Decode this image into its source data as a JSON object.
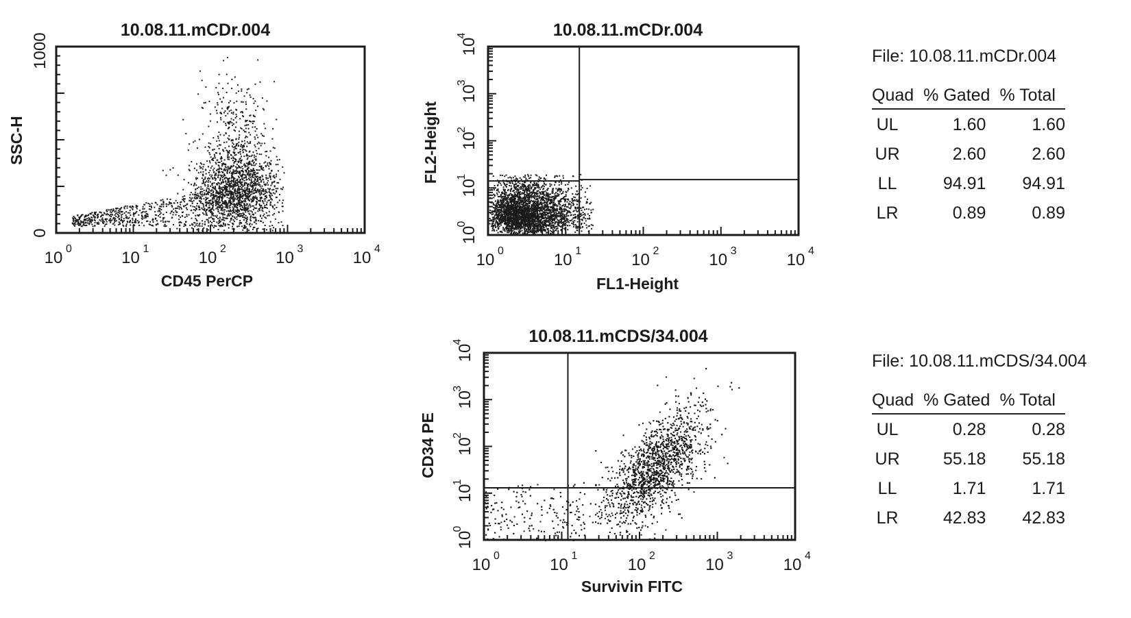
{
  "chart_data": [
    {
      "type": "scatter",
      "title": "10.08.11.mCDr.004",
      "xlabel": "CD45 PerCP",
      "ylabel": "SSC-H",
      "x_scale": "log",
      "y_scale": "linear",
      "xlim": [
        1,
        10000
      ],
      "ylim": [
        0,
        1023
      ],
      "x_ticks": [
        "10^0",
        "10^1",
        "10^2",
        "10^3",
        "10^4"
      ],
      "y_ticks": [
        "0",
        "1000"
      ],
      "grid": false,
      "quadrant_lines": null,
      "populations": [
        {
          "name": "",
          "center_x": 250,
          "center_y": 200,
          "spread": "broad granulocyte/monocyte cloud"
        },
        {
          "name": "",
          "center_x": 10,
          "center_y": 80,
          "spread": "low SSC tail"
        }
      ]
    },
    {
      "type": "scatter",
      "title": "10.08.11.mCDr.004",
      "xlabel": "FL1-Height",
      "ylabel": "FL2-Height",
      "x_scale": "log",
      "y_scale": "log",
      "xlim": [
        1,
        10000
      ],
      "ylim": [
        1,
        10000
      ],
      "x_ticks": [
        "10^0",
        "10^1",
        "10^2",
        "10^3",
        "10^4"
      ],
      "y_ticks": [
        "10^0",
        "10^1",
        "10^2",
        "10^3",
        "10^4"
      ],
      "grid": false,
      "quadrant_lines": {
        "x": 15,
        "y": 15
      },
      "populations": [
        {
          "name": "",
          "center_x": 3,
          "center_y": 3,
          "spread": "dense lower-left cluster"
        }
      ]
    },
    {
      "type": "scatter",
      "title": "10.08.11.mCDS/34.004",
      "xlabel": "Survivin FITC",
      "ylabel": "CD34 PE",
      "x_scale": "log",
      "y_scale": "log",
      "xlim": [
        1,
        10000
      ],
      "ylim": [
        1,
        10000
      ],
      "x_ticks": [
        "10^0",
        "10^1",
        "10^2",
        "10^3",
        "10^4"
      ],
      "y_ticks": [
        "10^0",
        "10^1",
        "10^2",
        "10^3",
        "10^4"
      ],
      "grid": false,
      "quadrant_lines": {
        "x": 12,
        "y": 13
      },
      "populations": [
        {
          "name": "",
          "center_x": 200,
          "center_y": 40,
          "spread": "dense diagonal cluster UR/LR"
        },
        {
          "name": "",
          "center_x": 4,
          "center_y": 4,
          "spread": "sparse lower-left scatter"
        }
      ]
    }
  ],
  "stats_tables": [
    {
      "file_label": "File: 10.08.11.mCDr.004",
      "headers": [
        "Quad",
        "% Gated",
        "% Total"
      ],
      "rows": [
        {
          "quad": "UL",
          "gated": "1.60",
          "total": "1.60"
        },
        {
          "quad": "UR",
          "gated": "2.60",
          "total": "2.60"
        },
        {
          "quad": "LL",
          "gated": "94.91",
          "total": "94.91"
        },
        {
          "quad": "LR",
          "gated": "0.89",
          "total": "0.89"
        }
      ]
    },
    {
      "file_label": "File: 10.08.11.mCDS/34.004",
      "headers": [
        "Quad",
        "% Gated",
        "% Total"
      ],
      "rows": [
        {
          "quad": "UL",
          "gated": "0.28",
          "total": "0.28"
        },
        {
          "quad": "UR",
          "gated": "55.18",
          "total": "55.18"
        },
        {
          "quad": "LL",
          "gated": "1.71",
          "total": "1.71"
        },
        {
          "quad": "LR",
          "gated": "42.83",
          "total": "42.83"
        }
      ]
    }
  ]
}
